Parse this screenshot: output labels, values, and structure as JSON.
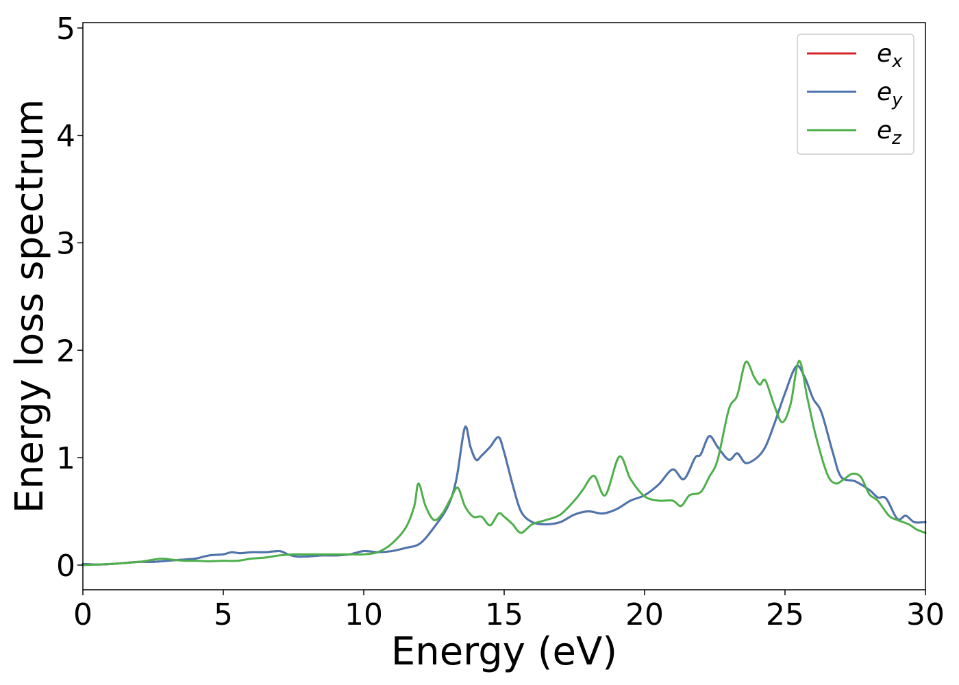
{
  "chart_data": {
    "type": "line",
    "title": "",
    "xlabel": "Energy (eV)",
    "ylabel": "Energy loss spectrum",
    "xlim": [
      0,
      30
    ],
    "ylim": [
      -0.23,
      5.05
    ],
    "xticks": [
      0,
      5,
      10,
      15,
      20,
      25,
      30
    ],
    "xtick_labels": [
      "0",
      "5",
      "10",
      "15",
      "20",
      "25",
      "30"
    ],
    "yticks": [
      0,
      1,
      2,
      3,
      4,
      5
    ],
    "ytick_labels": [
      "0",
      "1",
      "2",
      "3",
      "4",
      "5"
    ],
    "grid": false,
    "legend": {
      "position": "top-right",
      "entries": [
        {
          "base": "e",
          "sub": "x",
          "color": "#d62728"
        },
        {
          "base": "e",
          "sub": "y",
          "color": "#4a76b0"
        },
        {
          "base": "e",
          "sub": "z",
          "color": "#4daf4a"
        }
      ]
    },
    "series": [
      {
        "name": "e_x",
        "color": "#d62728",
        "x": [
          0,
          0.5,
          1,
          1.5,
          2,
          2.5,
          3,
          3.5,
          4,
          4.5,
          5,
          5.3,
          5.6,
          6,
          6.5,
          7,
          7.3,
          7.6,
          8,
          8.5,
          9,
          9.5,
          10,
          10.5,
          11,
          11.5,
          12,
          12.5,
          13,
          13.3,
          13.6,
          13.8,
          14,
          14.2,
          14.5,
          14.8,
          15,
          15.3,
          15.6,
          16,
          16.5,
          17,
          17.5,
          18,
          18.5,
          19,
          19.5,
          20,
          20.5,
          21,
          21.4,
          21.8,
          22,
          22.3,
          22.6,
          23,
          23.3,
          23.6,
          24,
          24.3,
          24.6,
          25,
          25.4,
          25.7,
          26,
          26.3,
          26.7,
          27,
          27.5,
          28,
          28.3,
          28.6,
          29,
          29.3,
          29.6,
          30
        ],
        "y": [
          0.01,
          0.005,
          0.01,
          0.02,
          0.03,
          0.03,
          0.04,
          0.05,
          0.06,
          0.09,
          0.1,
          0.12,
          0.11,
          0.12,
          0.12,
          0.13,
          0.1,
          0.08,
          0.08,
          0.09,
          0.09,
          0.1,
          0.13,
          0.12,
          0.13,
          0.16,
          0.2,
          0.35,
          0.55,
          0.8,
          1.28,
          1.1,
          0.98,
          1.02,
          1.1,
          1.19,
          1.05,
          0.75,
          0.5,
          0.4,
          0.38,
          0.4,
          0.47,
          0.5,
          0.48,
          0.52,
          0.6,
          0.65,
          0.75,
          0.89,
          0.8,
          1.0,
          1.03,
          1.2,
          1.1,
          0.98,
          1.04,
          0.95,
          1.0,
          1.1,
          1.3,
          1.6,
          1.85,
          1.75,
          1.55,
          1.42,
          1.05,
          0.82,
          0.78,
          0.7,
          0.63,
          0.62,
          0.43,
          0.46,
          0.4,
          0.4
        ]
      },
      {
        "name": "e_y",
        "color": "#4a76b0",
        "x": [
          0,
          0.5,
          1,
          1.5,
          2,
          2.5,
          3,
          3.5,
          4,
          4.5,
          5,
          5.3,
          5.6,
          6,
          6.5,
          7,
          7.3,
          7.6,
          8,
          8.5,
          9,
          9.5,
          10,
          10.5,
          11,
          11.5,
          12,
          12.5,
          13,
          13.3,
          13.6,
          13.8,
          14,
          14.2,
          14.5,
          14.8,
          15,
          15.3,
          15.6,
          16,
          16.5,
          17,
          17.5,
          18,
          18.5,
          19,
          19.5,
          20,
          20.5,
          21,
          21.4,
          21.8,
          22,
          22.3,
          22.6,
          23,
          23.3,
          23.6,
          24,
          24.3,
          24.6,
          25,
          25.4,
          25.7,
          26,
          26.3,
          26.7,
          27,
          27.5,
          28,
          28.3,
          28.6,
          29,
          29.3,
          29.6,
          30
        ],
        "y": [
          0.01,
          0.005,
          0.01,
          0.02,
          0.03,
          0.03,
          0.04,
          0.05,
          0.06,
          0.09,
          0.1,
          0.12,
          0.11,
          0.12,
          0.12,
          0.13,
          0.1,
          0.08,
          0.08,
          0.09,
          0.09,
          0.1,
          0.13,
          0.12,
          0.13,
          0.16,
          0.2,
          0.35,
          0.55,
          0.8,
          1.28,
          1.1,
          0.98,
          1.02,
          1.1,
          1.19,
          1.05,
          0.75,
          0.5,
          0.4,
          0.38,
          0.4,
          0.47,
          0.5,
          0.48,
          0.52,
          0.6,
          0.65,
          0.75,
          0.89,
          0.8,
          1.0,
          1.03,
          1.2,
          1.1,
          0.98,
          1.04,
          0.95,
          1.0,
          1.1,
          1.3,
          1.6,
          1.85,
          1.75,
          1.55,
          1.42,
          1.05,
          0.82,
          0.78,
          0.7,
          0.63,
          0.62,
          0.43,
          0.46,
          0.4,
          0.4
        ]
      },
      {
        "name": "e_z",
        "color": "#4daf4a",
        "x": [
          0,
          0.5,
          1,
          1.5,
          2,
          2.5,
          2.8,
          3.2,
          3.6,
          4,
          4.5,
          5,
          5.5,
          6,
          6.5,
          7,
          7.5,
          8,
          8.5,
          9,
          9.5,
          10,
          10.5,
          11,
          11.5,
          11.8,
          11.95,
          12.2,
          12.5,
          12.8,
          13.1,
          13.35,
          13.6,
          13.9,
          14.2,
          14.5,
          14.8,
          15,
          15.3,
          15.6,
          16,
          16.5,
          17,
          17.5,
          17.8,
          18.2,
          18.6,
          19.1,
          19.5,
          20,
          20.5,
          21,
          21.3,
          21.6,
          22,
          22.3,
          22.6,
          23,
          23.3,
          23.6,
          23.9,
          24.1,
          24.3,
          24.6,
          24.9,
          25.2,
          25.5,
          25.8,
          26.1,
          26.5,
          26.8,
          27.1,
          27.4,
          27.7,
          28,
          28.3,
          28.7,
          29,
          29.4,
          29.7,
          30
        ],
        "y": [
          0.0,
          0.005,
          0.01,
          0.02,
          0.03,
          0.05,
          0.06,
          0.05,
          0.04,
          0.04,
          0.035,
          0.04,
          0.04,
          0.06,
          0.07,
          0.09,
          0.1,
          0.1,
          0.1,
          0.1,
          0.1,
          0.1,
          0.12,
          0.2,
          0.35,
          0.55,
          0.76,
          0.55,
          0.42,
          0.48,
          0.62,
          0.72,
          0.55,
          0.45,
          0.45,
          0.37,
          0.48,
          0.45,
          0.38,
          0.3,
          0.38,
          0.42,
          0.47,
          0.6,
          0.7,
          0.83,
          0.65,
          1.01,
          0.8,
          0.64,
          0.6,
          0.6,
          0.55,
          0.65,
          0.68,
          0.82,
          0.98,
          1.45,
          1.58,
          1.89,
          1.75,
          1.68,
          1.72,
          1.5,
          1.33,
          1.5,
          1.9,
          1.55,
          1.2,
          0.85,
          0.76,
          0.8,
          0.85,
          0.82,
          0.66,
          0.6,
          0.46,
          0.42,
          0.38,
          0.33,
          0.3
        ]
      }
    ]
  }
}
